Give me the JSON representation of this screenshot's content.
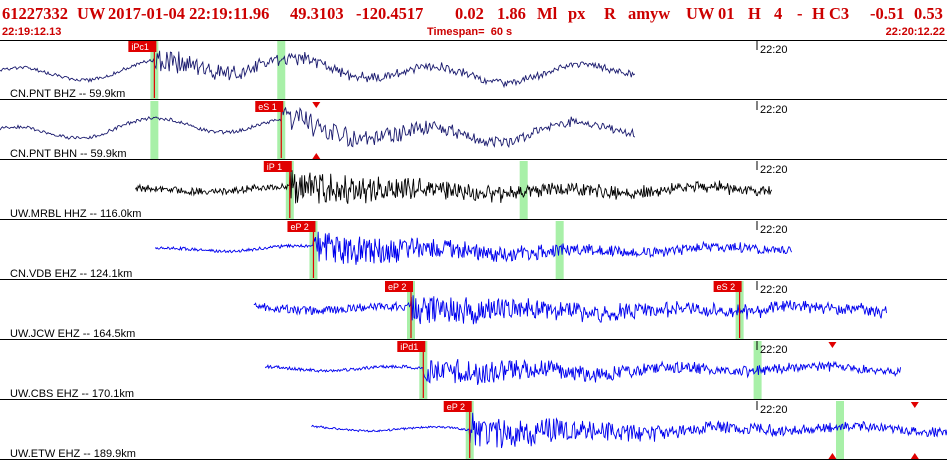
{
  "header": {
    "event_id": "61227332",
    "network": "UW",
    "origin_time": "2017-01-04 22:19:11.96",
    "latitude": "49.3103",
    "longitude": "-120.4517",
    "depth": "0.02",
    "magnitude": "1.86",
    "magnitude_type": "Ml",
    "flag1": "px",
    "flag2": "R",
    "analyst": "amyw",
    "station_net": "UW",
    "station_code": "01",
    "field_h": "H",
    "field_4": "4",
    "field_dash": "-",
    "field_hc3": "H C3",
    "value1": "-0.51",
    "value2": "0.53",
    "time_start": "22:19:12.13",
    "timespan_label": "Timespan=",
    "timespan_value": "60 s",
    "time_end": "22:20:12.22"
  },
  "colors": {
    "header_text": "#cc0000",
    "pick_flag": "#e00000",
    "pick_window": "#a8f0a8",
    "trace_navy": "#1a1a6e",
    "trace_black": "#000000",
    "trace_blue": "#0000ee",
    "separator": "#000000"
  },
  "channels": [
    {
      "label": "CN.PNT BHZ -- 59.9km",
      "minute_label": "22:20",
      "color": "trace_navy",
      "start": 0,
      "end": 0.671,
      "onset": 0.163,
      "amp": 0.35,
      "noise": 0.25,
      "style": "broadband",
      "picks": [
        {
          "label": "iPc1",
          "x": 0.163,
          "window": true
        }
      ],
      "windows": [
        0.163,
        0.297
      ],
      "triangles": []
    },
    {
      "label": "CN.PNT BHN -- 59.9km",
      "minute_label": "22:20",
      "color": "trace_navy",
      "start": 0,
      "end": 0.671,
      "onset": 0.297,
      "amp": 0.4,
      "noise": 0.25,
      "style": "broadband",
      "picks": [
        {
          "label": "eS 1",
          "x": 0.297,
          "window": true
        }
      ],
      "windows": [
        0.163,
        0.297
      ],
      "triangles": [
        {
          "x": 0.334,
          "dir": "down"
        },
        {
          "x": 0.334,
          "dir": "up"
        }
      ]
    },
    {
      "label": "UW.MRBL HHZ -- 116.0km",
      "minute_label": "22:20",
      "color": "trace_black",
      "start": 0.143,
      "end": 0.815,
      "onset": 0.306,
      "amp": 0.5,
      "noise": 0.28,
      "style": "dense",
      "picks": [
        {
          "label": "iP 1",
          "x": 0.306,
          "window": true
        }
      ],
      "windows": [
        0.306,
        0.553
      ],
      "triangles": []
    },
    {
      "label": "CN.VDB EHZ -- 124.1km",
      "minute_label": "22:20",
      "color": "trace_blue",
      "start": 0.164,
      "end": 0.836,
      "onset": 0.331,
      "amp": 0.55,
      "noise": 0.12,
      "style": "dense",
      "picks": [
        {
          "label": "eP 2",
          "x": 0.331,
          "window": true
        }
      ],
      "windows": [
        0.331,
        0.591
      ],
      "triangles": []
    },
    {
      "label": "UW.JCW EHZ -- 164.5km",
      "minute_label": "22:20",
      "color": "trace_blue",
      "start": 0.268,
      "end": 0.937,
      "onset": 0.434,
      "amp": 0.5,
      "noise": 0.32,
      "style": "dense",
      "picks": [
        {
          "label": "eP 2",
          "x": 0.434,
          "window": true
        },
        {
          "label": "eS 2",
          "x": 0.781,
          "window": true
        }
      ],
      "windows": [
        0.434,
        0.781
      ],
      "triangles": []
    },
    {
      "label": "UW.CBS EHZ -- 170.1km",
      "minute_label": "22:20",
      "color": "trace_blue",
      "start": 0.28,
      "end": 0.951,
      "onset": 0.447,
      "amp": 0.5,
      "noise": 0.12,
      "style": "dense",
      "picks": [
        {
          "label": "iPd1",
          "x": 0.447,
          "window": true
        }
      ],
      "windows": [
        0.447,
        0.8
      ],
      "triangles": [
        {
          "x": 0.879,
          "dir": "down"
        }
      ]
    },
    {
      "label": "UW.ETW EHZ -- 189.9km",
      "minute_label": "22:20",
      "color": "trace_blue",
      "start": 0.329,
      "end": 1,
      "onset": 0.496,
      "amp": 0.55,
      "noise": 0.08,
      "style": "dense",
      "picks": [
        {
          "label": "eP 2",
          "x": 0.496,
          "window": true
        }
      ],
      "windows": [
        0.496,
        0.887
      ],
      "triangles": [
        {
          "x": 0.879,
          "dir": "up"
        },
        {
          "x": 0.966,
          "dir": "down"
        },
        {
          "x": 0.966,
          "dir": "up"
        }
      ]
    }
  ]
}
